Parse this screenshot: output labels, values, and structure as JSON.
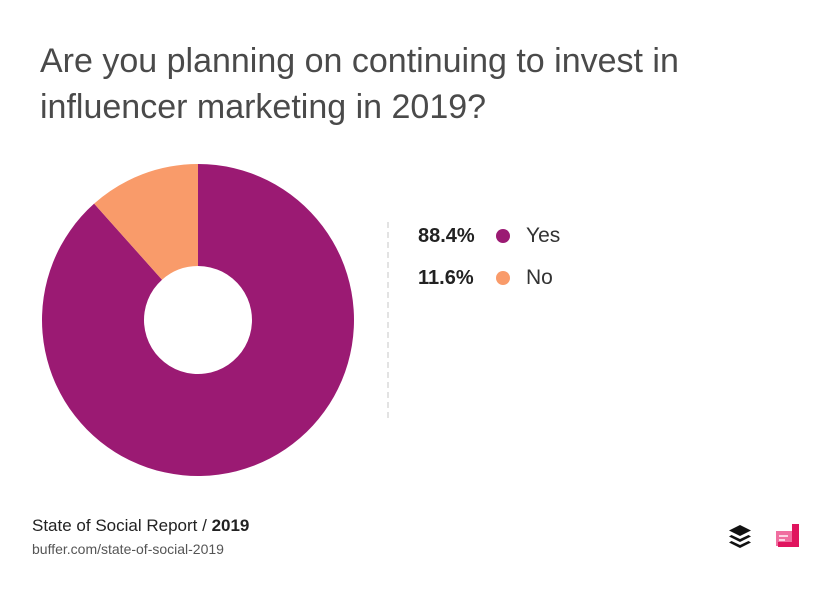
{
  "title": "Are you planning on continuing to invest in influencer marketing in 2019?",
  "chart_data": {
    "type": "pie",
    "donut": true,
    "categories": [
      "Yes",
      "No"
    ],
    "values": [
      88.4,
      11.6
    ],
    "value_labels": [
      "88.4%",
      "11.6%"
    ],
    "colors": [
      "#9b1a73",
      "#f99b6a"
    ],
    "legend_position": "right"
  },
  "footer": {
    "report_name": "State of Social Report /",
    "report_year": "2019",
    "url": "buffer.com/state-of-social-2019"
  },
  "icons": [
    "buffer-logo-icon",
    "brand-logo-icon"
  ]
}
